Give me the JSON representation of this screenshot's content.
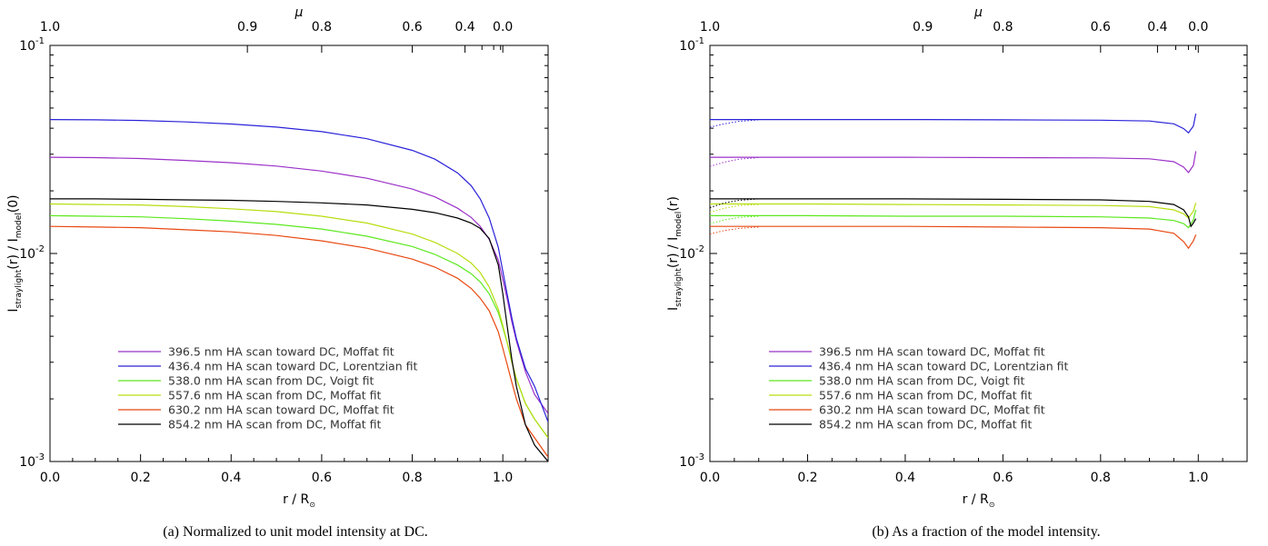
{
  "chart_data": [
    {
      "type": "line",
      "caption": "(a) Normalized to unit model intensity at DC.",
      "xlabel_main": "r / R",
      "xlabel_sub": "⊙",
      "ylabel_main": "I",
      "ylabel_sub": "straylight",
      "ylabel_mid": "(r) / I",
      "ylabel_sub2": "model",
      "ylabel_end": "(0)",
      "top_axis_label": "μ",
      "xlim": [
        0,
        1.1
      ],
      "ylim": [
        0.001,
        0.1
      ],
      "yscale": "log",
      "x_ticks": [
        "0.0",
        "0.2",
        "0.4",
        "0.6",
        "0.8",
        "1.0"
      ],
      "y_tick_labels": [
        {
          "base": "10",
          "exp": "-1"
        },
        {
          "base": "10",
          "exp": "-2"
        },
        {
          "base": "10",
          "exp": "-3"
        }
      ],
      "mu_ticks": [
        "1.0",
        "0.9",
        "0.8",
        "0.6",
        "0.4",
        "0.0"
      ],
      "legend_position": "lower-left",
      "series": [
        {
          "name": "396.5 nm HA scan toward DC, Moffat fit",
          "color": "#9b30c8",
          "x": [
            0,
            0.1,
            0.2,
            0.3,
            0.4,
            0.5,
            0.6,
            0.7,
            0.8,
            0.85,
            0.9,
            0.93,
            0.95,
            0.97,
            0.99,
            1.0,
            1.01,
            1.02,
            1.03,
            1.05,
            1.07,
            1.1
          ],
          "y": [
            0.029,
            0.0289,
            0.0286,
            0.028,
            0.0273,
            0.0263,
            0.0249,
            0.023,
            0.0204,
            0.0187,
            0.0165,
            0.0149,
            0.0135,
            0.0117,
            0.0093,
            0.0075,
            0.006,
            0.0047,
            0.0038,
            0.0027,
            0.0021,
            0.0017
          ]
        },
        {
          "name": "436.4 nm HA scan toward DC, Lorentzian fit",
          "color": "#2a22d8",
          "x": [
            0,
            0.1,
            0.2,
            0.3,
            0.4,
            0.5,
            0.6,
            0.7,
            0.8,
            0.85,
            0.9,
            0.93,
            0.95,
            0.97,
            0.99,
            1.0,
            1.01,
            1.02,
            1.03,
            1.05,
            1.07,
            1.1
          ],
          "y": [
            0.044,
            0.0439,
            0.0436,
            0.0429,
            0.0419,
            0.0405,
            0.0385,
            0.0356,
            0.0313,
            0.0284,
            0.0244,
            0.0212,
            0.0183,
            0.0148,
            0.0107,
            0.0082,
            0.0063,
            0.0049,
            0.0039,
            0.0028,
            0.0023,
            0.00155
          ]
        },
        {
          "name": "538.0 nm HA scan from DC, Voigt fit",
          "color": "#5ce81e",
          "x": [
            0,
            0.1,
            0.2,
            0.3,
            0.4,
            0.5,
            0.6,
            0.7,
            0.8,
            0.85,
            0.9,
            0.93,
            0.95,
            0.97,
            0.99,
            1.0,
            1.01,
            1.02,
            1.03,
            1.05,
            1.07,
            1.1
          ],
          "y": [
            0.0152,
            0.0151,
            0.015,
            0.0147,
            0.0143,
            0.0138,
            0.0131,
            0.0121,
            0.0108,
            0.0099,
            0.0088,
            0.008,
            0.0073,
            0.0064,
            0.0052,
            0.0044,
            0.0037,
            0.003,
            0.0025,
            0.0019,
            0.0016,
            0.0013
          ]
        },
        {
          "name": "557.6 nm HA scan from DC, Moffat fit",
          "color": "#b6dd10",
          "x": [
            0,
            0.1,
            0.2,
            0.3,
            0.4,
            0.5,
            0.6,
            0.7,
            0.8,
            0.85,
            0.9,
            0.93,
            0.95,
            0.97,
            0.99,
            1.0,
            1.01,
            1.02,
            1.03,
            1.05,
            1.07,
            1.1
          ],
          "y": [
            0.0173,
            0.0172,
            0.0171,
            0.0168,
            0.0164,
            0.0159,
            0.0151,
            0.014,
            0.0124,
            0.0113,
            0.01,
            0.009,
            0.0081,
            0.0069,
            0.0054,
            0.0045,
            0.0037,
            0.003,
            0.0025,
            0.0019,
            0.0016,
            0.0013
          ]
        },
        {
          "name": "630.2 nm HA scan toward DC, Moffat fit",
          "color": "#e84810",
          "x": [
            0,
            0.1,
            0.2,
            0.3,
            0.4,
            0.5,
            0.6,
            0.7,
            0.8,
            0.85,
            0.9,
            0.93,
            0.95,
            0.97,
            0.99,
            1.0,
            1.01,
            1.02,
            1.03,
            1.05,
            1.07,
            1.1
          ],
          "y": [
            0.0135,
            0.0134,
            0.0133,
            0.013,
            0.0127,
            0.0122,
            0.0115,
            0.0106,
            0.0094,
            0.0086,
            0.0076,
            0.0068,
            0.0061,
            0.0053,
            0.0042,
            0.0035,
            0.0029,
            0.0024,
            0.002,
            0.0015,
            0.0013,
            0.00105
          ]
        },
        {
          "name": "854.2 nm HA scan from DC, Moffat fit",
          "color": "#000000",
          "x": [
            0,
            0.1,
            0.2,
            0.3,
            0.4,
            0.5,
            0.6,
            0.7,
            0.8,
            0.85,
            0.9,
            0.93,
            0.95,
            0.97,
            0.99,
            1.0,
            1.01,
            1.02,
            1.03,
            1.05,
            1.07,
            1.1
          ],
          "y": [
            0.0183,
            0.0183,
            0.0182,
            0.0181,
            0.018,
            0.0178,
            0.0175,
            0.0171,
            0.0163,
            0.0157,
            0.0148,
            0.014,
            0.0132,
            0.0118,
            0.0088,
            0.0064,
            0.0044,
            0.0031,
            0.0023,
            0.0015,
            0.0012,
            0.001
          ]
        }
      ]
    },
    {
      "type": "line",
      "caption": "(b) As a fraction of the model intensity.",
      "xlabel_main": "r / R",
      "xlabel_sub": "⊙",
      "ylabel_main": "I",
      "ylabel_sub": "straylight",
      "ylabel_mid": "(r) / I",
      "ylabel_sub2": "model",
      "ylabel_end": "(r)",
      "top_axis_label": "μ",
      "xlim": [
        0,
        1.1
      ],
      "ylim": [
        0.001,
        0.1
      ],
      "yscale": "log",
      "x_ticks": [
        "0.0",
        "0.2",
        "0.4",
        "0.6",
        "0.8",
        "1.0"
      ],
      "y_tick_labels": [
        {
          "base": "10",
          "exp": "-1"
        },
        {
          "base": "10",
          "exp": "-2"
        },
        {
          "base": "10",
          "exp": "-3"
        }
      ],
      "mu_ticks": [
        "1.0",
        "0.9",
        "0.8",
        "0.6",
        "0.4",
        "0.0"
      ],
      "legend_position": "lower-left",
      "series": [
        {
          "name": "396.5 nm HA scan toward DC, Moffat fit",
          "color": "#9b30c8",
          "x": [
            0,
            0.2,
            0.4,
            0.6,
            0.8,
            0.9,
            0.95,
            0.97,
            0.98,
            0.99,
            0.995
          ],
          "y": [
            0.029,
            0.029,
            0.029,
            0.0289,
            0.0288,
            0.0285,
            0.0276,
            0.026,
            0.0245,
            0.0265,
            0.031
          ],
          "dotted_x": [
            0,
            0.03,
            0.06,
            0.1
          ],
          "dotted_y": [
            0.0262,
            0.0275,
            0.0284,
            0.0289
          ]
        },
        {
          "name": "436.4 nm HA scan toward DC, Lorentzian fit",
          "color": "#2a22d8",
          "x": [
            0,
            0.2,
            0.4,
            0.6,
            0.8,
            0.9,
            0.95,
            0.97,
            0.98,
            0.99,
            0.995
          ],
          "y": [
            0.044,
            0.044,
            0.044,
            0.0439,
            0.0437,
            0.0433,
            0.042,
            0.0398,
            0.038,
            0.041,
            0.047
          ],
          "dotted_x": [
            0,
            0.03,
            0.06,
            0.1
          ],
          "dotted_y": [
            0.0405,
            0.042,
            0.0432,
            0.0439
          ]
        },
        {
          "name": "538.0 nm HA scan from DC, Voigt fit",
          "color": "#5ce81e",
          "x": [
            0,
            0.2,
            0.4,
            0.6,
            0.8,
            0.9,
            0.95,
            0.97,
            0.98,
            0.99,
            0.995
          ],
          "y": [
            0.0152,
            0.0152,
            0.0151,
            0.0151,
            0.015,
            0.0148,
            0.0144,
            0.0139,
            0.0133,
            0.0145,
            0.0162
          ],
          "dotted_x": [
            0,
            0.03,
            0.06,
            0.1
          ],
          "dotted_y": [
            0.0139,
            0.0145,
            0.0149,
            0.0151
          ]
        },
        {
          "name": "557.6 nm HA scan from DC, Moffat fit",
          "color": "#b6dd10",
          "x": [
            0,
            0.2,
            0.4,
            0.6,
            0.8,
            0.9,
            0.95,
            0.97,
            0.98,
            0.99,
            0.995
          ],
          "y": [
            0.0173,
            0.0173,
            0.0172,
            0.0171,
            0.017,
            0.0168,
            0.0162,
            0.0155,
            0.0148,
            0.016,
            0.0175
          ],
          "dotted_x": [
            0,
            0.03,
            0.06,
            0.1
          ],
          "dotted_y": [
            0.0158,
            0.0165,
            0.017,
            0.0172
          ]
        },
        {
          "name": "630.2 nm HA scan toward DC, Moffat fit",
          "color": "#e84810",
          "x": [
            0,
            0.2,
            0.4,
            0.6,
            0.8,
            0.9,
            0.95,
            0.97,
            0.98,
            0.99,
            0.995
          ],
          "y": [
            0.0135,
            0.0135,
            0.0135,
            0.0134,
            0.0133,
            0.0131,
            0.0125,
            0.0114,
            0.0106,
            0.0115,
            0.0123
          ],
          "dotted_x": [
            0,
            0.03,
            0.06,
            0.1
          ],
          "dotted_y": [
            0.0124,
            0.0129,
            0.0132,
            0.0134
          ]
        },
        {
          "name": "854.2 nm HA scan from DC, Moffat fit",
          "color": "#000000",
          "x": [
            0,
            0.2,
            0.4,
            0.6,
            0.8,
            0.9,
            0.95,
            0.97,
            0.98,
            0.985,
            0.99,
            0.995
          ],
          "y": [
            0.0183,
            0.0183,
            0.0183,
            0.0182,
            0.0181,
            0.0178,
            0.0172,
            0.0162,
            0.015,
            0.0135,
            0.014,
            0.0147
          ],
          "dotted_x": [
            0,
            0.03,
            0.06,
            0.1
          ],
          "dotted_y": [
            0.0166,
            0.0175,
            0.018,
            0.0183
          ]
        }
      ]
    }
  ]
}
